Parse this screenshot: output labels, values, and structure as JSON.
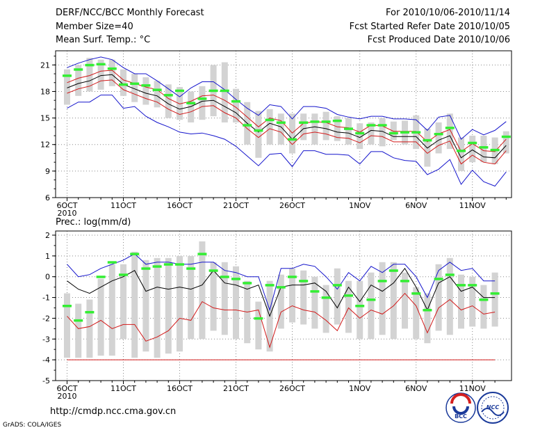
{
  "header": {
    "title": "DERF/NCC/BCC Monthly Forecast",
    "member_size": "Member Size=40",
    "variable": "Mean Surf. Temp.: °C",
    "period": "For 2010/10/06-2010/11/14",
    "started": "Fcst Started Refer Date 2010/10/05",
    "produced": "Fcst Produced Date 2010/10/06"
  },
  "footer": {
    "url": "http://cmdp.ncc.cma.gov.cn",
    "grads": "GrADS: COLA/IGES",
    "logo_bcc": "BCC",
    "logo_ncc": "NCC"
  },
  "colors": {
    "box": "#d3d3d3",
    "mean": "#000000",
    "band_red": "#d21919",
    "band_blue": "#1414cc",
    "marker": "#33ee33",
    "grid": "#888888"
  },
  "x_axis": {
    "ticks": [
      {
        "day": 0,
        "label": "6OCT"
      },
      {
        "day": 5,
        "label": "11OCT"
      },
      {
        "day": 10,
        "label": "16OCT"
      },
      {
        "day": 15,
        "label": "21OCT"
      },
      {
        "day": 20,
        "label": "26OCT"
      },
      {
        "day": 26,
        "label": "1NOV"
      },
      {
        "day": 31,
        "label": "6NOV"
      },
      {
        "day": 36,
        "label": "11NOV"
      }
    ],
    "year_label": "2010"
  },
  "chart_data": [
    {
      "type": "line",
      "title": "Mean Surf. Temp.: °C",
      "xlabel": "",
      "ylabel": "",
      "ylim": [
        6,
        22.6
      ],
      "yticks": [
        6,
        9,
        12,
        15,
        18,
        21
      ],
      "series": [
        {
          "name": "mean",
          "values": [
            18.4,
            18.9,
            19.2,
            19.8,
            19.9,
            18.8,
            18.3,
            17.8,
            17.5,
            16.6,
            16.0,
            16.3,
            16.9,
            17.0,
            16.3,
            15.6,
            14.4,
            13.4,
            14.4,
            14.0,
            12.6,
            13.8,
            14.0,
            13.8,
            13.4,
            13.3,
            12.8,
            13.6,
            13.5,
            12.9,
            12.9,
            12.9,
            11.6,
            12.5,
            13.0,
            10.5,
            11.4,
            10.6,
            10.5,
            11.9
          ]
        },
        {
          "name": "upper",
          "values": [
            19.0,
            19.5,
            19.8,
            20.3,
            20.4,
            19.3,
            18.9,
            18.5,
            18.2,
            17.2,
            16.6,
            16.9,
            17.5,
            17.6,
            17.0,
            16.2,
            15.1,
            14.0,
            15.0,
            14.7,
            13.3,
            14.4,
            14.6,
            14.5,
            14.0,
            13.9,
            13.4,
            14.2,
            14.1,
            13.5,
            13.5,
            13.5,
            12.3,
            13.2,
            13.7,
            11.2,
            12.1,
            11.3,
            11.2,
            12.6
          ]
        },
        {
          "name": "lower",
          "values": [
            17.8,
            18.3,
            18.6,
            19.2,
            19.3,
            18.2,
            17.7,
            17.2,
            16.8,
            16.0,
            15.4,
            15.7,
            16.3,
            16.4,
            15.6,
            15.0,
            13.8,
            12.8,
            13.8,
            13.4,
            12.0,
            13.2,
            13.4,
            13.2,
            12.8,
            12.7,
            12.2,
            13.0,
            12.9,
            12.3,
            12.3,
            12.3,
            11.0,
            11.9,
            12.4,
            9.8,
            10.8,
            10.0,
            9.8,
            11.3
          ]
        },
        {
          "name": "max",
          "values": [
            20.7,
            21.2,
            21.6,
            21.9,
            21.6,
            20.7,
            20.0,
            20.0,
            19.2,
            18.3,
            17.4,
            18.4,
            19.1,
            19.1,
            18.2,
            17.1,
            16.1,
            15.3,
            16.5,
            16.3,
            14.9,
            16.3,
            16.3,
            16.1,
            15.4,
            15.1,
            14.9,
            15.2,
            15.2,
            14.9,
            14.9,
            14.8,
            13.6,
            15.1,
            15.3,
            12.6,
            13.7,
            13.1,
            13.6,
            14.6
          ]
        },
        {
          "name": "min",
          "values": [
            16.1,
            16.8,
            16.8,
            17.6,
            17.6,
            16.1,
            16.3,
            15.2,
            14.5,
            14.0,
            13.4,
            13.2,
            13.3,
            13.0,
            12.6,
            11.8,
            10.7,
            9.6,
            10.9,
            11.0,
            9.5,
            11.3,
            11.3,
            10.9,
            10.9,
            10.8,
            9.8,
            11.2,
            11.2,
            10.5,
            10.2,
            10.1,
            8.6,
            9.2,
            10.3,
            7.5,
            9.1,
            7.8,
            7.3,
            8.9
          ]
        }
      ],
      "markers": [
        19.8,
        20.5,
        21.0,
        21.1,
        20.6,
        18.8,
        18.9,
        18.7,
        18.2,
        17.6,
        18.1,
        16.7,
        17.2,
        18.1,
        18.1,
        16.9,
        14.2,
        13.6,
        14.8,
        14.5,
        12.6,
        14.5,
        14.6,
        14.6,
        14.7,
        13.8,
        13.3,
        14.2,
        14.2,
        13.3,
        13.4,
        13.4,
        12.5,
        13.2,
        13.9,
        11.3,
        12.2,
        11.7,
        11.4,
        12.9
      ],
      "boxes": [
        [
          16.5,
          20.5
        ],
        [
          17.5,
          21.0
        ],
        [
          18.0,
          21.8
        ],
        [
          18.2,
          21.6
        ],
        [
          18.6,
          21.6
        ],
        [
          17.5,
          20.5
        ],
        [
          16.8,
          20.0
        ],
        [
          16.5,
          19.6
        ],
        [
          16.2,
          19.2
        ],
        [
          15.0,
          18.8
        ],
        [
          14.8,
          18.5
        ],
        [
          14.5,
          18.0
        ],
        [
          14.8,
          18.6
        ],
        [
          15.2,
          21.0
        ],
        [
          14.5,
          21.3
        ],
        [
          14.5,
          18.3
        ],
        [
          12.0,
          16.8
        ],
        [
          10.5,
          15.8
        ],
        [
          12.0,
          16.0
        ],
        [
          12.0,
          15.5
        ],
        [
          11.0,
          15.5
        ],
        [
          12.5,
          15.5
        ],
        [
          12.0,
          15.5
        ],
        [
          12.5,
          15.7
        ],
        [
          12.4,
          15.2
        ],
        [
          12.0,
          15.0
        ],
        [
          11.5,
          14.4
        ],
        [
          12.0,
          14.5
        ],
        [
          11.8,
          15.0
        ],
        [
          12.5,
          14.6
        ],
        [
          12.0,
          14.7
        ],
        [
          11.5,
          15.3
        ],
        [
          9.5,
          13.8
        ],
        [
          11.0,
          14.5
        ],
        [
          11.5,
          15.5
        ],
        [
          9.0,
          12.8
        ],
        [
          10.0,
          13.0
        ],
        [
          10.0,
          13.0
        ],
        [
          9.8,
          12.8
        ],
        [
          11.0,
          13.5
        ]
      ]
    },
    {
      "type": "line",
      "title": "Prec.: log(mm/d)",
      "xlabel": "",
      "ylabel": "",
      "ylim": [
        -5,
        2.2
      ],
      "yticks": [
        -5,
        -4,
        -3,
        -2,
        -1,
        0,
        1,
        2
      ],
      "series": [
        {
          "name": "mean",
          "values": [
            -0.2,
            -0.6,
            -0.8,
            -0.5,
            -0.2,
            0.0,
            0.3,
            -0.7,
            -0.5,
            -0.6,
            -0.5,
            -0.6,
            -0.4,
            0.3,
            -0.3,
            -0.4,
            -0.6,
            -0.4,
            -1.9,
            -0.5,
            -0.4,
            -0.4,
            -0.3,
            -0.7,
            -1.5,
            -0.5,
            -1.2,
            -0.4,
            -0.7,
            -0.3,
            0.4,
            -0.5,
            -1.6,
            -0.3,
            0.0,
            -0.7,
            -0.5,
            -1.0,
            -1.0
          ]
        },
        {
          "name": "upper",
          "values": [
            0.6,
            0.0,
            0.1,
            0.4,
            0.6,
            0.8,
            1.1,
            0.6,
            0.7,
            0.7,
            0.6,
            0.6,
            0.7,
            0.7,
            0.3,
            0.2,
            0.0,
            0.0,
            -1.6,
            0.4,
            0.4,
            0.6,
            0.5,
            0.0,
            -0.6,
            0.2,
            -0.2,
            0.5,
            0.2,
            0.6,
            0.6,
            0.0,
            -1.0,
            0.3,
            0.7,
            0.3,
            0.4,
            -0.2,
            -0.2
          ]
        },
        {
          "name": "lower",
          "values": [
            -1.9,
            -2.5,
            -2.4,
            -2.1,
            -2.5,
            -2.3,
            -2.3,
            -3.1,
            -2.9,
            -2.6,
            -2.0,
            -2.1,
            -1.2,
            -1.5,
            -1.6,
            -1.6,
            -1.7,
            -1.6,
            -3.4,
            -1.7,
            -1.4,
            -1.6,
            -1.7,
            -2.1,
            -2.6,
            -1.5,
            -2.0,
            -1.6,
            -1.8,
            -1.4,
            -0.8,
            -1.4,
            -2.7,
            -1.5,
            -1.1,
            -1.6,
            -1.4,
            -1.8,
            -1.7
          ]
        },
        {
          "name": "floor",
          "values": [
            -4.0,
            -4.0,
            -4.0,
            -4.0,
            -4.0,
            -4.0,
            -4.0,
            -4.0,
            -4.0,
            -4.0,
            -4.0,
            -4.0,
            -4.0,
            -4.0,
            -4.0,
            -4.0,
            -4.0,
            -4.0,
            -4.0,
            -4.0,
            -4.0,
            -4.0,
            -4.0,
            -4.0,
            -4.0,
            -4.0,
            -4.0,
            -4.0,
            -4.0,
            -4.0,
            -4.0,
            -4.0,
            -4.0,
            -4.0,
            -4.0,
            -4.0,
            -4.0,
            -4.0,
            -4.0
          ]
        }
      ],
      "markers": [
        -1.4,
        -2.1,
        -1.7,
        0.0,
        0.7,
        0.1,
        1.1,
        0.4,
        0.5,
        0.6,
        0.6,
        0.4,
        1.1,
        0.3,
        0.0,
        -0.1,
        -0.3,
        -2.0,
        -0.4,
        -0.5,
        0.0,
        -0.2,
        -0.7,
        -1.0,
        -0.4,
        -0.9,
        -1.4,
        -1.1,
        -0.2,
        0.3,
        -0.2,
        -0.8,
        -1.6,
        -0.1,
        0.1,
        -0.4,
        -0.4,
        -1.1,
        -0.8
      ],
      "boxes": [
        [
          -3.9,
          -0.8
        ],
        [
          -3.9,
          -1.3
        ],
        [
          -3.9,
          -1.1
        ],
        [
          -3.8,
          -0.1
        ],
        [
          -3.8,
          0.6
        ],
        [
          -3.0,
          0.6
        ],
        [
          -3.9,
          1.2
        ],
        [
          -3.6,
          0.8
        ],
        [
          -3.9,
          0.9
        ],
        [
          -3.7,
          0.9
        ],
        [
          -3.6,
          1.0
        ],
        [
          -3.0,
          1.0
        ],
        [
          -3.0,
          1.7
        ],
        [
          -2.6,
          0.7
        ],
        [
          -2.8,
          0.7
        ],
        [
          -3.0,
          0.5
        ],
        [
          -3.2,
          -0.2
        ],
        [
          -3.5,
          -1.2
        ],
        [
          -3.6,
          -0.2
        ],
        [
          -2.5,
          0.1
        ],
        [
          -2.2,
          0.4
        ],
        [
          -2.3,
          0.3
        ],
        [
          -2.5,
          0.0
        ],
        [
          -2.7,
          -0.4
        ],
        [
          -2.3,
          0.4
        ],
        [
          -2.7,
          -0.2
        ],
        [
          -3.0,
          -0.2
        ],
        [
          -3.0,
          0.2
        ],
        [
          -2.8,
          0.7
        ],
        [
          -3.0,
          0.7
        ],
        [
          -2.5,
          0.2
        ],
        [
          -3.0,
          -0.5
        ],
        [
          -3.2,
          -0.8
        ],
        [
          -2.6,
          0.6
        ],
        [
          -2.8,
          0.9
        ],
        [
          -2.5,
          0.1
        ],
        [
          -2.4,
          0.0
        ],
        [
          -2.5,
          -0.4
        ],
        [
          -2.4,
          0.2
        ]
      ]
    }
  ]
}
